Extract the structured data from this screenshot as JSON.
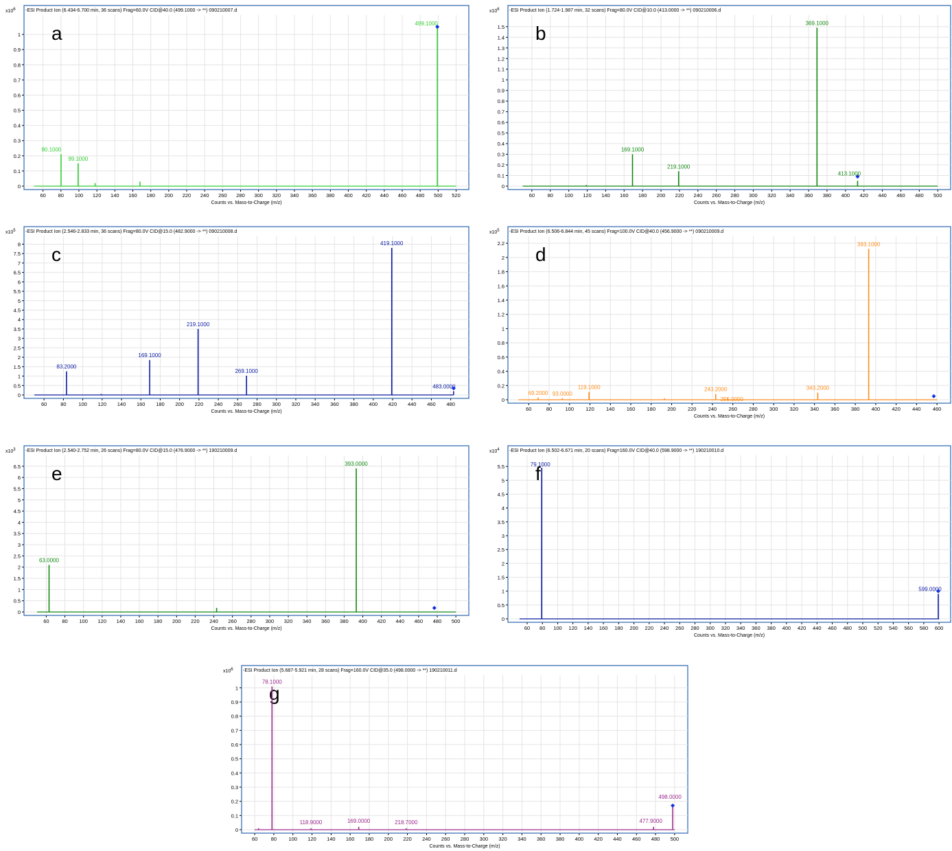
{
  "chart_data": [
    {
      "type": "line",
      "panel_letter": "a",
      "title": "-ESI Product Ion (6.434-6.700 min, 36 scans) Frag=60.0V CID@40.0 (499.1000 -> **) 090210007.d",
      "xlabel": "Counts vs. Mass-to-Charge (m/z)",
      "y_multiplier": "x10",
      "y_exponent": "6",
      "color": "#33cc33",
      "xlim": [
        45,
        528
      ],
      "ylim": [
        0,
        1.1
      ],
      "xticks": [
        60,
        80,
        100,
        120,
        140,
        160,
        180,
        200,
        220,
        240,
        260,
        280,
        300,
        320,
        340,
        360,
        380,
        400,
        420,
        440,
        460,
        480,
        500,
        520
      ],
      "yticks": [
        "0",
        "0.1",
        "0.2",
        "0.3",
        "0.4",
        "0.5",
        "0.6",
        "0.7",
        "0.8",
        "0.9",
        "1"
      ],
      "baseline": [
        50,
        520
      ],
      "precursor_marker": {
        "x": 499.1,
        "y": 1.05
      },
      "peaks": [
        {
          "x": 80.1,
          "y": 0.21,
          "label": "80.1000"
        },
        {
          "x": 99.1,
          "y": 0.15,
          "label": "99.1000"
        },
        {
          "x": 118.0,
          "y": 0.02
        },
        {
          "x": 168.0,
          "y": 0.03
        },
        {
          "x": 499.1,
          "y": 1.05,
          "label": "499.1000"
        }
      ]
    },
    {
      "type": "line",
      "panel_letter": "b",
      "title": "-ESI Product Ion (1.724-1.987 min, 32 scans) Frag=80.0V CID@10.0 (413.0000 -> **) 090210006.d",
      "xlabel": "Counts vs. Mass-to-Charge (m/z)",
      "y_multiplier": "x10",
      "y_exponent": "6",
      "color": "#118811",
      "xlim": [
        40,
        508
      ],
      "ylim": [
        0,
        1.57
      ],
      "xticks": [
        60,
        80,
        100,
        120,
        140,
        160,
        180,
        200,
        220,
        240,
        260,
        280,
        300,
        320,
        340,
        360,
        380,
        400,
        420,
        440,
        460,
        480,
        500
      ],
      "yticks": [
        "0",
        "0.1",
        "0.2",
        "0.3",
        "0.4",
        "0.5",
        "0.6",
        "0.7",
        "0.8",
        "0.9",
        "1",
        "1.1",
        "1.2",
        "1.3",
        "1.4",
        "1.5"
      ],
      "baseline": [
        50,
        500
      ],
      "precursor_marker": {
        "x": 413.1,
        "y": 0.09
      },
      "peaks": [
        {
          "x": 119.0,
          "y": 0.01
        },
        {
          "x": 169.1,
          "y": 0.3,
          "label": "169.1000"
        },
        {
          "x": 219.1,
          "y": 0.14,
          "label": "219.1000"
        },
        {
          "x": 369.1,
          "y": 1.49,
          "label": "369.1000"
        },
        {
          "x": 413.1,
          "y": 0.05,
          "label": "413.1000"
        }
      ]
    },
    {
      "type": "line",
      "panel_letter": "c",
      "title": "-ESI Product Ion (2.546-2.833 min, 36 scans) Frag=80.0V CID@15.0 (482.9000 -> **) 090210008.d",
      "xlabel": "Counts vs. Mass-to-Charge (m/z)",
      "y_multiplier": "x10",
      "y_exponent": "5",
      "color": "#0a1aa0",
      "xlim": [
        45,
        493
      ],
      "ylim": [
        0,
        8.2
      ],
      "xticks": [
        60,
        80,
        100,
        120,
        140,
        160,
        180,
        200,
        220,
        240,
        260,
        280,
        300,
        320,
        340,
        360,
        380,
        400,
        420,
        440,
        460,
        480
      ],
      "yticks": [
        "0",
        "0.5",
        "1",
        "1.5",
        "2",
        "2.5",
        "3",
        "3.5",
        "4",
        "4.5",
        "5",
        "5.5",
        "6",
        "6.5",
        "7",
        "7.5",
        "8"
      ],
      "baseline": [
        50,
        483
      ],
      "precursor_marker": {
        "x": 483.0,
        "y": 0.35
      },
      "peaks": [
        {
          "x": 83.2,
          "y": 1.25,
          "label": "83.2000"
        },
        {
          "x": 119.0,
          "y": 0.05
        },
        {
          "x": 169.1,
          "y": 1.85,
          "label": "169.1000"
        },
        {
          "x": 219.1,
          "y": 3.5,
          "label": "219.1000"
        },
        {
          "x": 269.1,
          "y": 1.02,
          "label": "269.1000"
        },
        {
          "x": 419.1,
          "y": 7.8,
          "label": "419.1000"
        },
        {
          "x": 483.0,
          "y": 0.2,
          "label": "483.0000"
        }
      ]
    },
    {
      "type": "line",
      "panel_letter": "d",
      "title": "-ESI Product Ion (6.506-6.844 min, 45 scans) Frag=100.0V CID@40.0 (456.9000 -> **) 090210009.d",
      "xlabel": "Counts vs. Mass-to-Charge (m/z)",
      "y_multiplier": "x10",
      "y_exponent": "5",
      "color": "#ff8c1a",
      "xlim": [
        45,
        468
      ],
      "ylim": [
        0,
        2.24
      ],
      "xticks": [
        60,
        80,
        100,
        120,
        140,
        160,
        180,
        200,
        220,
        240,
        260,
        280,
        300,
        320,
        340,
        360,
        380,
        400,
        420,
        440,
        460
      ],
      "yticks": [
        "0",
        "0.2",
        "0.4",
        "0.6",
        "0.8",
        "1",
        "1.2",
        "1.4",
        "1.6",
        "1.8",
        "2",
        "2.2"
      ],
      "baseline": [
        50,
        460
      ],
      "precursor_marker": {
        "x": 456.9,
        "y": 0.05
      },
      "peaks": [
        {
          "x": 69.2,
          "y": 0.03,
          "label": "69.2000"
        },
        {
          "x": 93.0,
          "y": 0.02,
          "label": "93.0000"
        },
        {
          "x": 119.1,
          "y": 0.11,
          "label": "119.1000"
        },
        {
          "x": 193.0,
          "y": 0.02
        },
        {
          "x": 243.2,
          "y": 0.08,
          "label": "243.2000"
        },
        {
          "x": 255.0,
          "y": 0.02,
          "label": "255.0000"
        },
        {
          "x": 343.2,
          "y": 0.1,
          "label": "343.2000"
        },
        {
          "x": 393.1,
          "y": 2.12,
          "label": "393.1000"
        }
      ]
    },
    {
      "type": "line",
      "panel_letter": "e",
      "title": "-ESI Product Ion (2.540-2.752 min, 26 scans) Frag=80.0V CID@15.0 (476.9000 -> **) 190210009.d",
      "xlabel": "Counts vs. Mass-to-Charge (m/z)",
      "y_multiplier": "x10",
      "y_exponent": "3",
      "color": "#118811",
      "xlim": [
        42,
        508
      ],
      "ylim": [
        0,
        6.8
      ],
      "xticks": [
        60,
        80,
        100,
        120,
        140,
        160,
        180,
        200,
        220,
        240,
        260,
        280,
        300,
        320,
        340,
        360,
        380,
        400,
        420,
        440,
        460,
        480,
        500
      ],
      "yticks": [
        "0",
        "0.5",
        "1",
        "1.5",
        "2",
        "2.5",
        "3",
        "3.5",
        "4",
        "4.5",
        "5",
        "5.5",
        "6",
        "6.5"
      ],
      "baseline": [
        50,
        500
      ],
      "precursor_marker": {
        "x": 476.9,
        "y": 0.18
      },
      "peaks": [
        {
          "x": 63.0,
          "y": 2.1,
          "label": "63.0000"
        },
        {
          "x": 243.0,
          "y": 0.18
        },
        {
          "x": 393.0,
          "y": 6.4,
          "label": "393.0000"
        }
      ]
    },
    {
      "type": "line",
      "panel_letter": "f",
      "title": "-ESI Product Ion (6.502-6.671 min, 20 scans) Frag=160.0V CID@40.0 (598.9000 -> **) 190210010.d",
      "xlabel": "Counts vs. Mass-to-Charge (m/z)",
      "y_multiplier": "x10",
      "y_exponent": "4",
      "color": "#0a1aa0",
      "xlim": [
        42,
        608
      ],
      "ylim": [
        0,
        5.75
      ],
      "xticks": [
        60,
        80,
        100,
        120,
        140,
        160,
        180,
        200,
        220,
        240,
        260,
        280,
        300,
        320,
        340,
        360,
        380,
        400,
        420,
        440,
        460,
        480,
        500,
        520,
        540,
        560,
        580,
        600
      ],
      "yticks": [
        "0",
        "0.5",
        "1",
        "1.5",
        "2",
        "2.5",
        "3",
        "3.5",
        "4",
        "4.5",
        "5",
        "5.5"
      ],
      "baseline": [
        50,
        600
      ],
      "precursor_marker": {
        "x": 599.0,
        "y": 1.0
      },
      "peaks": [
        {
          "x": 79.1,
          "y": 5.45,
          "label": "79.1000"
        },
        {
          "x": 599.0,
          "y": 0.9,
          "label": "599.0000"
        }
      ]
    },
    {
      "type": "line",
      "panel_letter": "g",
      "title": "-ESI Product Ion (5.687-5.921 min, 28 scans) Frag=160.0V CID@35.0 (498.0000 -> **) 190210011.d",
      "xlabel": "Counts vs. Mass-to-Charge (m/z)",
      "y_multiplier": "x10",
      "y_exponent": "6",
      "color": "#9b2a8c",
      "xlim": [
        52,
        508
      ],
      "ylim": [
        0,
        1.06
      ],
      "xticks": [
        60,
        80,
        100,
        120,
        140,
        160,
        180,
        200,
        220,
        240,
        260,
        280,
        300,
        320,
        340,
        360,
        380,
        400,
        420,
        440,
        460,
        480,
        500
      ],
      "yticks": [
        "0",
        "0.1",
        "0.2",
        "0.3",
        "0.4",
        "0.5",
        "0.6",
        "0.7",
        "0.8",
        "0.9",
        "1"
      ],
      "baseline": [
        60,
        500
      ],
      "precursor_marker": {
        "x": 498.0,
        "y": 0.17
      },
      "peaks": [
        {
          "x": 64.0,
          "y": 0.01
        },
        {
          "x": 78.1,
          "y": 1.01,
          "label": "78.1000"
        },
        {
          "x": 118.9,
          "y": 0.01,
          "label": "118.9000"
        },
        {
          "x": 169.0,
          "y": 0.02,
          "label": "169.0000"
        },
        {
          "x": 218.7,
          "y": 0.01,
          "label": "218.7000"
        },
        {
          "x": 477.9,
          "y": 0.02,
          "label": "477.9000"
        },
        {
          "x": 498.0,
          "y": 0.16,
          "label": "498.0000"
        }
      ]
    }
  ]
}
